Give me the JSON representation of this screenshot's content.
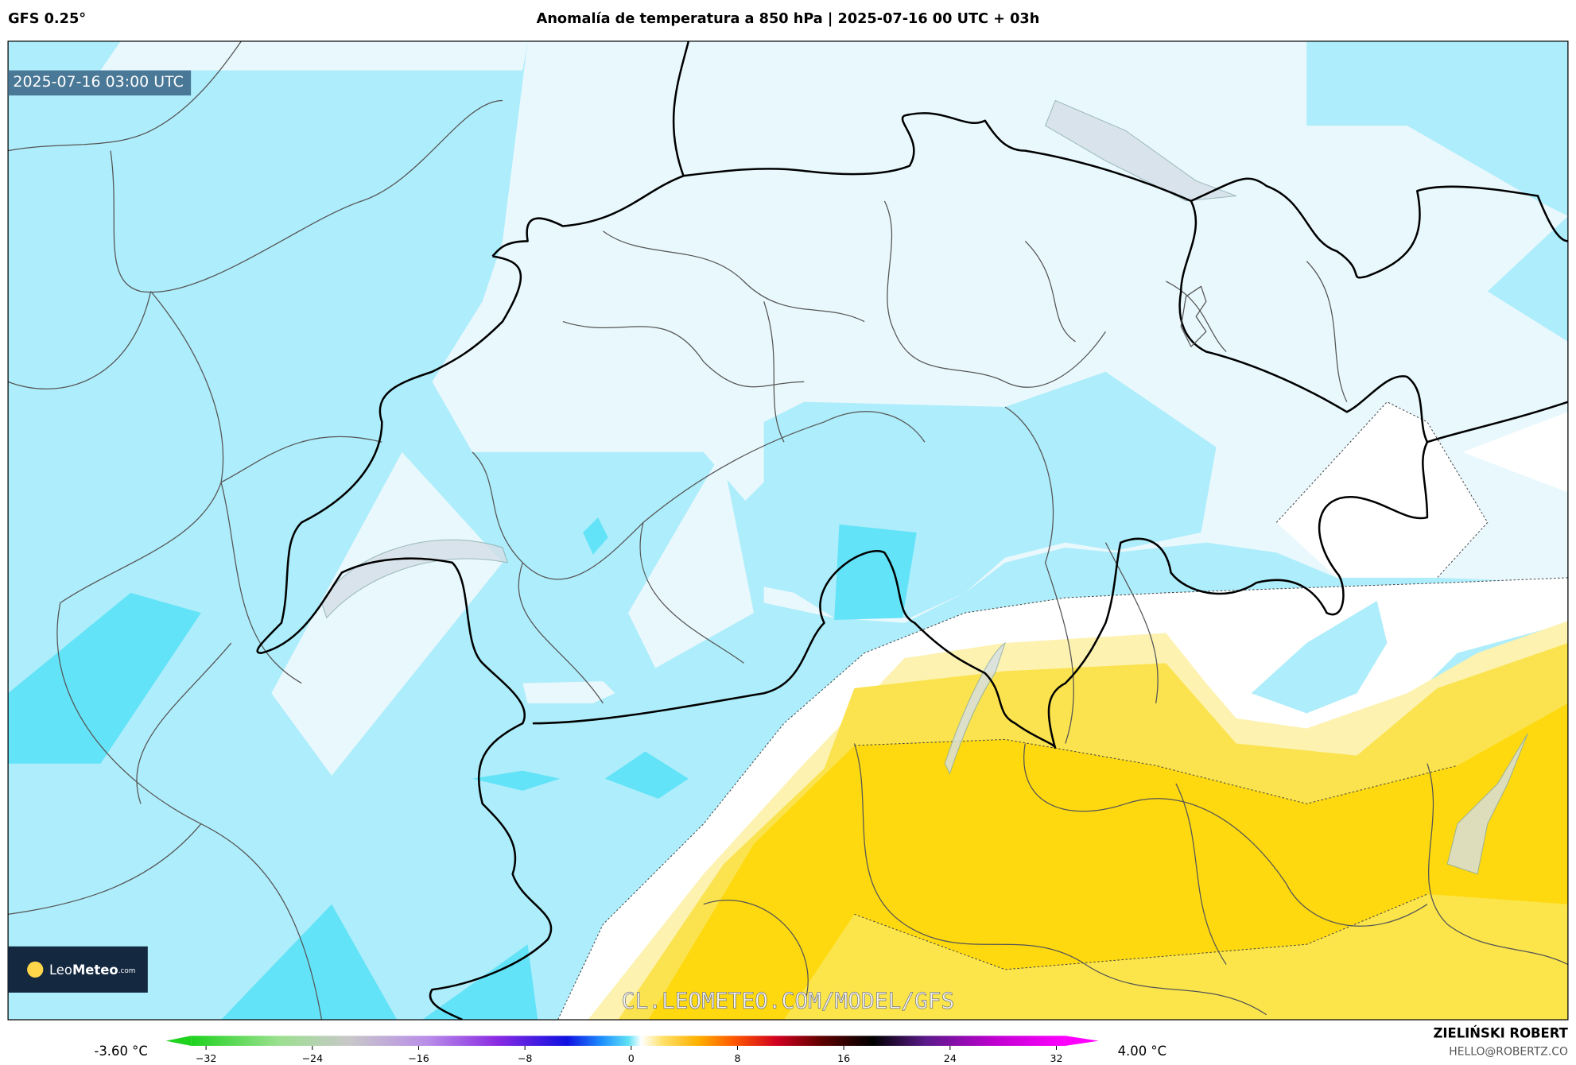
{
  "header": {
    "model": "GFS 0.25°",
    "title": "Anomalía de temperatura a 850 hPa | 2025-07-16 00 UTC + 03h"
  },
  "map": {
    "timestamp": "2025-07-16 03:00 UTC",
    "watermark": "CL.LEOMETEO.COM/MODEL/GFS",
    "logo": {
      "light": "Leo",
      "bold": "Meteo",
      "domain": ".com"
    }
  },
  "legend": {
    "min": "-3.60 °C",
    "max": "4.00 °C",
    "ticks": [
      {
        "value": -32,
        "label": "−32"
      },
      {
        "value": -24,
        "label": "−24"
      },
      {
        "value": -16,
        "label": "−16"
      },
      {
        "value": -8,
        "label": "−8"
      },
      0,
      8,
      16,
      24,
      32
    ]
  },
  "credit": {
    "name": "ZIELIŃSKI ROBERT",
    "email": "HELLO@ROBERTZ.CO"
  }
}
